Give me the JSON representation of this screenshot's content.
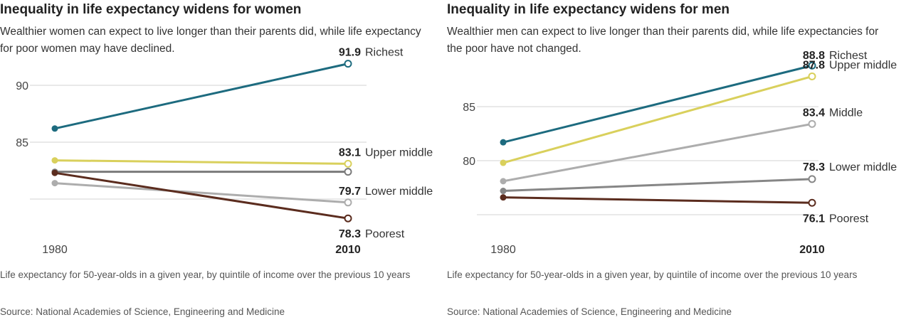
{
  "chart_data": [
    {
      "type": "line",
      "title": "Inequality in life expectancy widens for women",
      "subtitle": "Wealthier women can expect to live longer than their parents did, while life expectancy for poor women may have declined.",
      "note": "Life expectancy for 50-year-olds in a given year, by quintile of income over the previous 10 years",
      "source": "Source: National Academies of Science, Engineering and Medicine",
      "x": [
        "1980",
        "2010"
      ],
      "yticks": [
        90,
        85,
        80
      ],
      "ytick_labels": [
        "90",
        "85",
        ""
      ],
      "grid": true,
      "series": [
        {
          "name": "Richest",
          "values": [
            86.2,
            91.9
          ],
          "color": "#1d6b7f",
          "label": "91.9"
        },
        {
          "name": "Upper middle",
          "values": [
            83.4,
            83.1
          ],
          "color": "#d9d05c",
          "label": "83.1"
        },
        {
          "name": "",
          "values": [
            82.4,
            82.4
          ],
          "color": "#7a7a7a",
          "label": ""
        },
        {
          "name": "Lower middle",
          "values": [
            81.4,
            79.7
          ],
          "color": "#adadad",
          "label": "79.7"
        },
        {
          "name": "Poorest",
          "values": [
            82.3,
            78.3
          ],
          "color": "#5b2c1e",
          "label": "78.3"
        }
      ]
    },
    {
      "type": "line",
      "title": "Inequality in life expectancy widens for men",
      "subtitle": "Wealthier men can expect to live longer than their parents did, while life expectancies for the poor have not changed.",
      "note": "Life expectancy for 50-year-olds in a given year, by quintile of income over the previous 10 years",
      "source": "Source: National Academies of Science, Engineering and Medicine",
      "x": [
        "1980",
        "2010"
      ],
      "yticks": [
        85,
        80,
        75
      ],
      "ytick_labels": [
        "85",
        "80",
        ""
      ],
      "grid": true,
      "series": [
        {
          "name": "Richest",
          "values": [
            81.7,
            88.8
          ],
          "color": "#1d6b7f",
          "label": "88.8"
        },
        {
          "name": "Upper middle",
          "values": [
            79.8,
            87.8
          ],
          "color": "#d9d05c",
          "label": "87.8"
        },
        {
          "name": "Middle",
          "values": [
            78.1,
            83.4
          ],
          "color": "#adadad",
          "label": "83.4"
        },
        {
          "name": "Lower middle",
          "values": [
            77.2,
            78.3
          ],
          "color": "#868686",
          "label": "78.3"
        },
        {
          "name": "Poorest",
          "values": [
            76.6,
            76.1
          ],
          "color": "#5b2c1e",
          "label": "76.1"
        }
      ]
    }
  ]
}
